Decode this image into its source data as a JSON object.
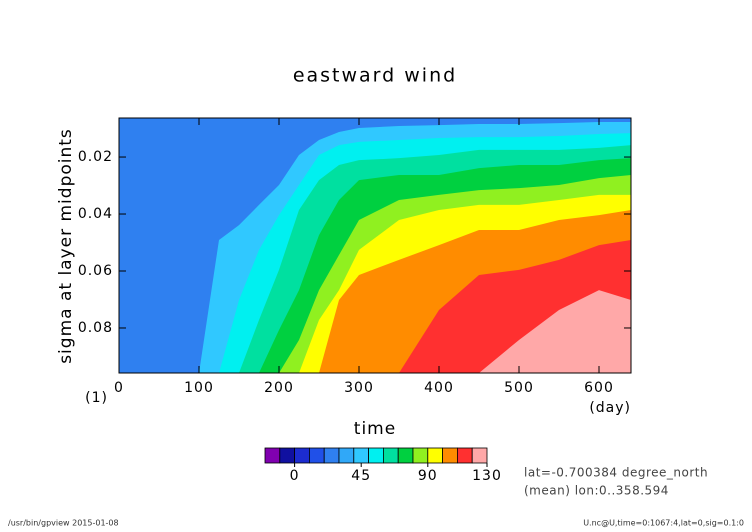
{
  "chart_data": {
    "type": "contour",
    "title": "eastward wind",
    "x_label": "time",
    "y_label": "sigma at layer midpoints",
    "x_unit": "(day)",
    "y_unit": "(1)",
    "xlim": [
      0,
      640
    ],
    "ylim": [
      0.0958,
      0.0063
    ],
    "xticks": [
      0,
      100,
      200,
      300,
      400,
      500,
      600
    ],
    "yticks": [
      0.02,
      0.04,
      0.06,
      0.08
    ],
    "base_color": "#2f80f0",
    "x": [
      0,
      100,
      125,
      150,
      175,
      200,
      225,
      250,
      275,
      300,
      350,
      400,
      450,
      500,
      550,
      600,
      640
    ],
    "series": [
      {
        "color": "#30c8ff",
        "values": [
          0.0958,
          0.0958,
          0.0491,
          0.0439,
          0.0368,
          0.0298,
          0.0193,
          0.014,
          0.0112,
          0.0098,
          0.0091,
          0.0088,
          0.0084,
          0.0084,
          0.0081,
          0.0077,
          0.0077
        ]
      },
      {
        "color": "#00f0f0",
        "values": [
          0.0958,
          0.0958,
          0.0958,
          0.0702,
          0.0526,
          0.0404,
          0.0298,
          0.0193,
          0.0158,
          0.0147,
          0.014,
          0.0133,
          0.013,
          0.013,
          0.0126,
          0.0119,
          0.0116
        ]
      },
      {
        "color": "#00e0a0",
        "values": [
          0.0958,
          0.0958,
          0.0958,
          0.0958,
          0.0772,
          0.0596,
          0.0386,
          0.0281,
          0.0228,
          0.0211,
          0.0204,
          0.0193,
          0.0175,
          0.0175,
          0.0175,
          0.0168,
          0.0158
        ]
      },
      {
        "color": "#00d040",
        "values": [
          0.0958,
          0.0958,
          0.0958,
          0.0958,
          0.0958,
          0.0807,
          0.0667,
          0.0474,
          0.0351,
          0.0281,
          0.0263,
          0.0263,
          0.0239,
          0.0228,
          0.0228,
          0.0211,
          0.0204
        ]
      },
      {
        "color": "#90f020",
        "values": [
          0.0958,
          0.0958,
          0.0958,
          0.0958,
          0.0958,
          0.0958,
          0.0842,
          0.0667,
          0.0544,
          0.0421,
          0.0351,
          0.0333,
          0.0316,
          0.0309,
          0.0298,
          0.0274,
          0.0263
        ]
      },
      {
        "color": "#ffff00",
        "values": [
          0.0958,
          0.0958,
          0.0958,
          0.0958,
          0.0958,
          0.0958,
          0.0958,
          0.0772,
          0.0667,
          0.0526,
          0.0421,
          0.0386,
          0.0368,
          0.0368,
          0.0351,
          0.0333,
          0.0333
        ]
      },
      {
        "color": "#ff8c00",
        "values": [
          0.0958,
          0.0958,
          0.0958,
          0.0958,
          0.0958,
          0.0958,
          0.0958,
          0.0958,
          0.0702,
          0.0614,
          0.0561,
          0.0509,
          0.0456,
          0.0456,
          0.0421,
          0.0404,
          0.0386
        ]
      },
      {
        "color": "#ff3030",
        "values": [
          0.0958,
          0.0958,
          0.0958,
          0.0958,
          0.0958,
          0.0958,
          0.0958,
          0.0958,
          0.0958,
          0.0958,
          0.0958,
          0.0737,
          0.0614,
          0.0596,
          0.0561,
          0.0509,
          0.0491
        ]
      },
      {
        "color": "#ffa8a8",
        "values": [
          0.0958,
          0.0958,
          0.0958,
          0.0958,
          0.0958,
          0.0958,
          0.0958,
          0.0958,
          0.0958,
          0.0958,
          0.0958,
          0.0958,
          0.0958,
          0.0842,
          0.0737,
          0.0667,
          0.0702
        ]
      }
    ],
    "colorbar": {
      "levels": [
        -20,
        -10,
        0,
        10,
        20,
        30,
        40,
        50,
        60,
        70,
        80,
        90,
        100,
        110,
        120,
        130
      ],
      "colors": [
        "#8000b0",
        "#1010a0",
        "#1c2cd0",
        "#2050e8",
        "#2f80f0",
        "#30a8f8",
        "#30c8ff",
        "#00f0f0",
        "#00e0a0",
        "#00d040",
        "#90f020",
        "#ffff00",
        "#ff8c00",
        "#ff3030",
        "#ffa8a8"
      ],
      "ticks": [
        0,
        45,
        90,
        130
      ]
    },
    "annotations": [
      "lat=-0.700384 degree_north",
      "(mean) lon:0..358.594"
    ],
    "footer_left": "/usr/bin/gpview  2015-01-08",
    "footer_right": "U.nc@U,time=0:1067:4,lat=0,sig=0.1:0"
  }
}
